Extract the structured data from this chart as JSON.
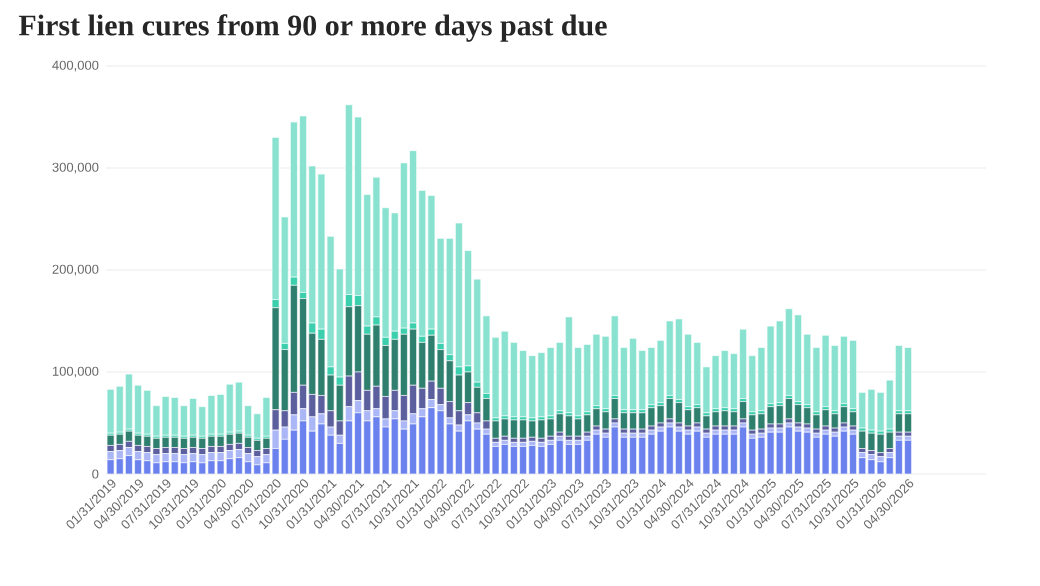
{
  "chart_data": {
    "type": "bar",
    "stacked": true,
    "title": "First lien cures from 90 or more days past due",
    "categories": [
      "01/31/2019",
      null,
      null,
      "04/30/2019",
      null,
      null,
      "07/31/2019",
      null,
      null,
      "10/31/2019",
      null,
      null,
      "01/31/2020",
      null,
      null,
      "04/30/2020",
      null,
      null,
      "07/31/2020",
      null,
      null,
      "10/31/2020",
      null,
      null,
      "01/31/2021",
      null,
      null,
      "04/30/2021",
      null,
      null,
      "07/31/2021",
      null,
      null,
      "10/31/2021",
      null,
      null,
      "01/31/2022",
      null,
      null,
      "04/30/2022",
      null,
      null,
      "07/31/2022",
      null,
      null,
      "10/31/2022",
      null,
      null,
      "01/31/2023",
      null,
      null,
      "04/30/2023",
      null,
      null,
      "07/31/2023",
      null,
      null,
      "10/31/2023",
      null,
      null,
      "01/31/2024",
      null,
      null,
      "04/30/2024",
      null,
      null,
      "07/31/2024",
      null,
      null,
      "10/31/2024",
      null,
      null,
      "01/31/2025",
      null,
      null,
      "04/30/2025",
      null,
      null,
      "07/31/2025",
      null,
      null,
      "10/31/2025",
      null,
      null,
      "01/31/2026",
      null,
      null,
      "04/30/2026"
    ],
    "series": [
      {
        "color": "#6b82ee",
        "values": [
          14000,
          15000,
          18000,
          14000,
          13000,
          11000,
          12000,
          12000,
          11000,
          12000,
          11000,
          13000,
          13000,
          15000,
          16000,
          12000,
          9000,
          11000,
          25000,
          34000,
          43000,
          52000,
          42000,
          49000,
          38000,
          30000,
          52000,
          60000,
          52000,
          56000,
          46000,
          54000,
          44000,
          49000,
          56000,
          65000,
          62000,
          49000,
          42000,
          52000,
          44000,
          39000,
          27000,
          29000,
          27000,
          27000,
          28000,
          27000,
          29000,
          33000,
          29000,
          29000,
          33000,
          39000,
          36000,
          46000,
          36000,
          36000,
          36000,
          39000,
          42000,
          46000,
          42000,
          39000,
          42000,
          36000,
          39000,
          39000,
          39000,
          46000,
          35000,
          36000,
          41000,
          41000,
          46000,
          42000,
          41000,
          36000,
          39000,
          37000,
          42000,
          39000,
          16000,
          14000,
          12000,
          16000,
          33000,
          33000
        ]
      },
      {
        "color": "#aab6f6",
        "values": [
          8000,
          8000,
          8000,
          8000,
          8000,
          8000,
          8000,
          8000,
          8000,
          8000,
          8000,
          8000,
          8000,
          8000,
          8000,
          8000,
          8000,
          8000,
          18000,
          12000,
          15000,
          12000,
          14000,
          10000,
          8000,
          8000,
          14000,
          12000,
          10000,
          8000,
          8000,
          8000,
          8000,
          10000,
          8000,
          8000,
          6000,
          6000,
          6000,
          6000,
          6000,
          5000,
          4000,
          4000,
          4000,
          4000,
          4000,
          4000,
          4000,
          4000,
          4000,
          4000,
          4000,
          4000,
          4000,
          4000,
          4000,
          4000,
          4000,
          4000,
          4000,
          4000,
          4000,
          4000,
          4000,
          4000,
          4000,
          4000,
          4000,
          4000,
          4000,
          4000,
          4000,
          4000,
          4000,
          4000,
          4000,
          4000,
          4000,
          4000,
          4000,
          4000,
          5000,
          5000,
          5000,
          5000,
          4000,
          4000
        ]
      },
      {
        "color": "#5c5f9e",
        "values": [
          6000,
          6000,
          6000,
          6000,
          6000,
          6000,
          6000,
          6000,
          6000,
          6000,
          6000,
          6000,
          6000,
          6000,
          6000,
          6000,
          6000,
          6000,
          20000,
          16000,
          22000,
          23000,
          22000,
          18000,
          16000,
          14000,
          30000,
          28000,
          20000,
          22000,
          22000,
          20000,
          25000,
          28000,
          20000,
          18000,
          16000,
          16000,
          14000,
          12000,
          10000,
          8000,
          4000,
          4000,
          4000,
          4000,
          4000,
          4000,
          4000,
          4000,
          4000,
          4000,
          4000,
          4000,
          4000,
          4000,
          4000,
          4000,
          4000,
          4000,
          4000,
          4000,
          4000,
          4000,
          4000,
          4000,
          4000,
          4000,
          4000,
          4000,
          4000,
          4000,
          4000,
          4000,
          4000,
          4000,
          4000,
          4000,
          4000,
          4000,
          4000,
          4000,
          4000,
          4000,
          4000,
          4000,
          4000,
          4000
        ]
      },
      {
        "color": "#2f7f6f",
        "values": [
          10000,
          10000,
          10000,
          10000,
          10000,
          10000,
          10000,
          10000,
          10000,
          10000,
          10000,
          10000,
          10000,
          10000,
          10000,
          10000,
          10000,
          10000,
          100000,
          60000,
          105000,
          85000,
          60000,
          55000,
          35000,
          35000,
          68000,
          65000,
          55000,
          60000,
          50000,
          50000,
          60000,
          55000,
          45000,
          45000,
          38000,
          40000,
          35000,
          30000,
          25000,
          22000,
          17000,
          17000,
          18000,
          18000,
          16000,
          18000,
          17000,
          18000,
          20000,
          17000,
          17000,
          17000,
          17000,
          20000,
          16000,
          16000,
          16000,
          18000,
          17000,
          20000,
          20000,
          16000,
          15000,
          13000,
          14000,
          15000,
          14000,
          17000,
          15000,
          15000,
          17000,
          18000,
          20000,
          18000,
          16000,
          14000,
          16000,
          14000,
          16000,
          14000,
          17000,
          17000,
          18000,
          16000,
          18000,
          18000
        ]
      },
      {
        "color": "#3ccfae",
        "values": [
          2000,
          2000,
          2000,
          2000,
          2000,
          2000,
          2000,
          2000,
          2000,
          2000,
          2000,
          2000,
          2000,
          2000,
          2000,
          2000,
          2000,
          2000,
          8000,
          6000,
          8000,
          6000,
          10000,
          10000,
          8000,
          8000,
          12000,
          10000,
          8000,
          8000,
          8000,
          8000,
          6000,
          6000,
          6000,
          6000,
          6000,
          6000,
          8000,
          6000,
          5000,
          5000,
          3000,
          3000,
          3000,
          3000,
          3000,
          3000,
          3000,
          3000,
          3000,
          3000,
          3000,
          3000,
          3000,
          3000,
          3000,
          3000,
          3000,
          3000,
          3000,
          3000,
          3000,
          3000,
          3000,
          3000,
          3000,
          3000,
          3000,
          3000,
          3000,
          3000,
          3000,
          3000,
          3000,
          3000,
          3000,
          3000,
          3000,
          3000,
          3000,
          3000,
          3000,
          3000,
          3000,
          3000,
          3000,
          3000
        ]
      },
      {
        "color": "#88e2cf",
        "values": [
          43000,
          45000,
          54000,
          47000,
          43000,
          30000,
          38000,
          37000,
          30000,
          36000,
          29000,
          38000,
          39000,
          47000,
          48000,
          29000,
          24000,
          38000,
          159000,
          124000,
          152000,
          173000,
          154000,
          152000,
          128000,
          106000,
          186000,
          175000,
          129000,
          137000,
          127000,
          116000,
          162000,
          169000,
          143000,
          131000,
          103000,
          114000,
          141000,
          113000,
          101000,
          76000,
          79000,
          83000,
          73000,
          65000,
          61000,
          63000,
          67000,
          67000,
          94000,
          67000,
          66000,
          70000,
          71000,
          78000,
          61000,
          70000,
          58000,
          56000,
          61000,
          73000,
          79000,
          71000,
          61000,
          45000,
          52000,
          56000,
          54000,
          68000,
          55000,
          62000,
          76000,
          80000,
          85000,
          85000,
          69000,
          63000,
          70000,
          64000,
          66000,
          67000,
          35000,
          40000,
          38000,
          48000,
          64000,
          62000
        ]
      }
    ],
    "ylim": [
      0,
      400000
    ],
    "yticks": [
      {
        "value": 0,
        "label": "0"
      },
      {
        "value": 100000,
        "label": "100,000"
      },
      {
        "value": 200000,
        "label": "200,000"
      },
      {
        "value": 300000,
        "label": "300,000"
      },
      {
        "value": 400000,
        "label": "400,000"
      }
    ],
    "grid": "y"
  }
}
